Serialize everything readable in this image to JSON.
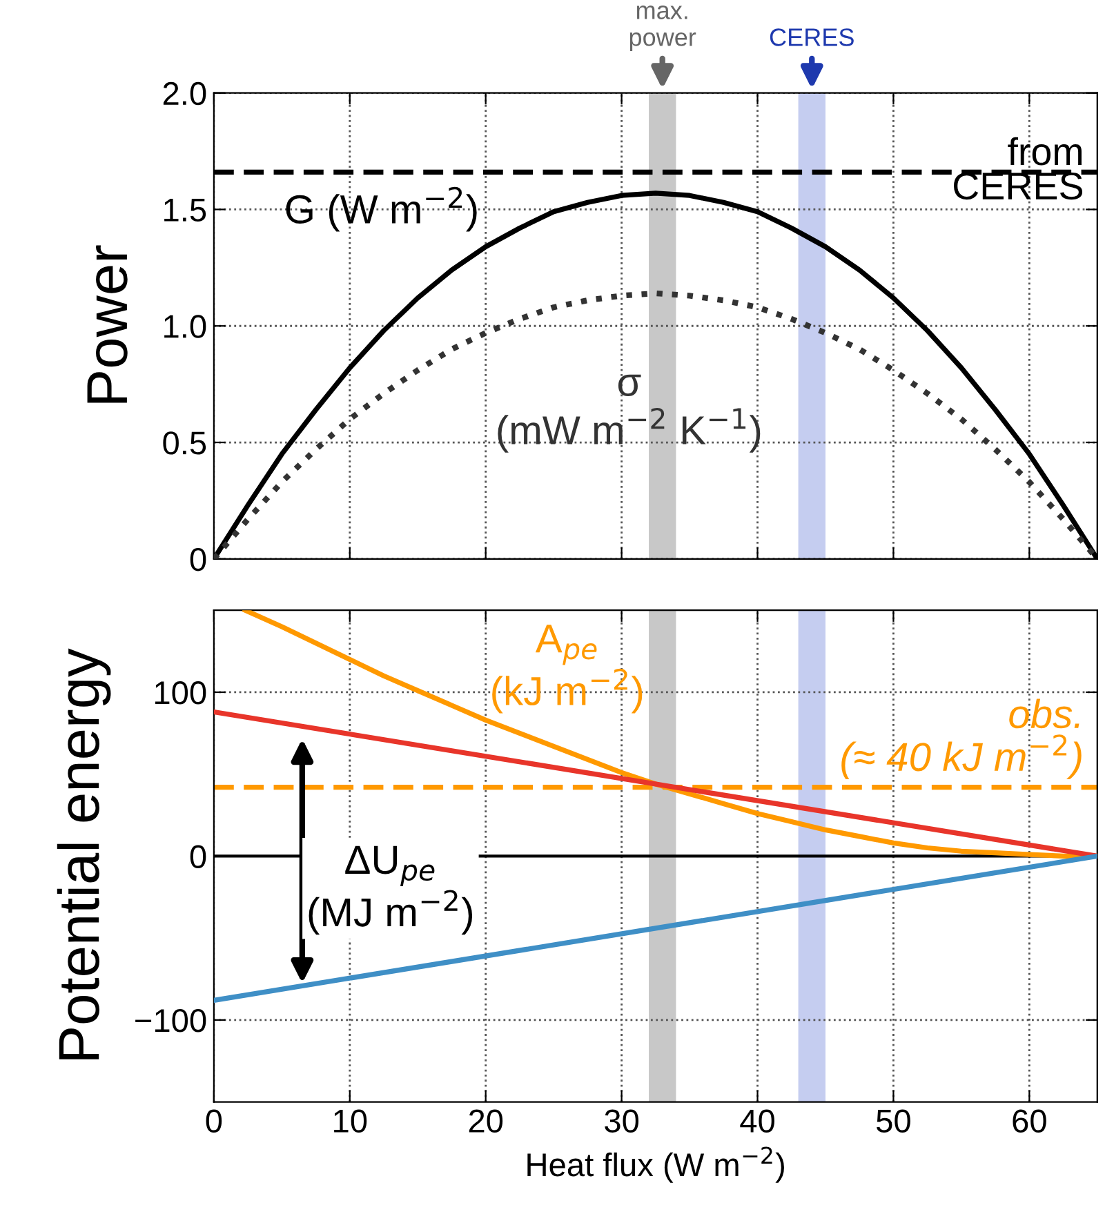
{
  "chart_data": [
    {
      "type": "line",
      "ylabel": "Power",
      "xlim": [
        0,
        65
      ],
      "xticks": [
        0,
        10,
        20,
        30,
        40,
        50,
        60
      ],
      "ylim": [
        0,
        2.0
      ],
      "yticks": [
        0,
        {
          "value": 0.5,
          "label": "0.5"
        },
        {
          "value": 1.0,
          "label": "1.0"
        },
        {
          "value": 1.5,
          "label": "1.5"
        },
        {
          "value": 2.0,
          "label": "2.0"
        }
      ],
      "tick_labels": "y",
      "grid": true,
      "series": [
        {
          "name": "G (W m$^{−2}$)",
          "color": "#000000",
          "line_style": "solid",
          "x": [
            0,
            2.5,
            5,
            7.5,
            10,
            12.5,
            15,
            17.5,
            20,
            22.5,
            25,
            27.5,
            30,
            32.5,
            35,
            37.5,
            40,
            42.5,
            45,
            47.5,
            50,
            52.5,
            55,
            57.5,
            60,
            62.5,
            65
          ],
          "values": [
            0,
            0.23,
            0.45,
            0.64,
            0.82,
            0.98,
            1.12,
            1.24,
            1.34,
            1.42,
            1.49,
            1.53,
            1.56,
            1.57,
            1.56,
            1.53,
            1.49,
            1.42,
            1.34,
            1.24,
            1.12,
            0.98,
            0.82,
            0.64,
            0.45,
            0.23,
            0
          ]
        },
        {
          "name": "σ\n(mW m$^{−2}$ K$^{−1}$)",
          "color": "#333333",
          "line_style": "dotted",
          "x": [
            0,
            2.5,
            5,
            7.5,
            10,
            12.5,
            15,
            17.5,
            20,
            22.5,
            25,
            27.5,
            30,
            32.5,
            35,
            37.5,
            40,
            42.5,
            45,
            47.5,
            50,
            52.5,
            55,
            57.5,
            60,
            62.5,
            65
          ],
          "values": [
            0,
            0.17,
            0.33,
            0.47,
            0.6,
            0.71,
            0.81,
            0.9,
            0.97,
            1.03,
            1.08,
            1.11,
            1.13,
            1.14,
            1.13,
            1.11,
            1.08,
            1.03,
            0.97,
            0.9,
            0.81,
            0.71,
            0.6,
            0.47,
            0.33,
            0.17,
            0
          ]
        }
      ],
      "ref_lines": [
        {
          "axis": "y",
          "value": 1.66,
          "label": "from\nCERES",
          "color": "#000000",
          "line_style": "dashed"
        }
      ],
      "bands": [
        {
          "axis": "x",
          "from": 32,
          "to": 34,
          "label": "max.\npower",
          "color": "#c8c8c8"
        },
        {
          "axis": "x",
          "from": 43,
          "to": 45,
          "label": "CERES",
          "color": "#c5cdf0"
        }
      ]
    },
    {
      "type": "line",
      "ylabel": "Potential energy",
      "xlabel": "Heat flux (W m$^{−2}$)",
      "xlim": [
        0,
        65
      ],
      "xticks": [
        0,
        10,
        20,
        30,
        40,
        50,
        60
      ],
      "ylim": [
        -150,
        150
      ],
      "yticks": [
        {
          "value": -100,
          "label": "−100"
        },
        0,
        100
      ],
      "grid": true,
      "series": [
        {
          "name": "A$_{pe}$\n(kJ m$^{−2}$)",
          "color": "#ff9900",
          "line_style": "solid",
          "x": [
            2.3,
            5,
            7.5,
            10,
            12.5,
            15,
            17.5,
            20,
            22.5,
            25,
            27.5,
            30,
            32.5,
            35,
            37.5,
            40,
            42.5,
            45,
            47.5,
            50,
            52.5,
            55,
            57.5,
            60,
            62.5,
            65
          ],
          "values": [
            150,
            140,
            130,
            120,
            110,
            101,
            92,
            83,
            75,
            67,
            59,
            51,
            44,
            38,
            32,
            26,
            21,
            16,
            12,
            8,
            5,
            3,
            2,
            1,
            0,
            0
          ]
        },
        {
          "color": "#e8352a",
          "line_style": "solid",
          "x": [
            0,
            65
          ],
          "values": [
            88,
            0
          ]
        },
        {
          "color": "#3f8fc6",
          "line_style": "solid",
          "x": [
            0,
            65
          ],
          "values": [
            -88,
            0
          ]
        }
      ],
      "ref_lines": [
        {
          "axis": "y",
          "value": 42,
          "label": "obs.\n(≈ 40 kJ m$^{−2}$)",
          "color": "#ff9900",
          "line_style": "dashed"
        },
        {
          "axis": "y",
          "value": 0,
          "color": "#000000",
          "line_style": "solid"
        }
      ],
      "bands": [
        {
          "axis": "x",
          "from": 32,
          "to": 34,
          "color": "#c8c8c8"
        },
        {
          "axis": "x",
          "from": 43,
          "to": 45,
          "color": "#c5cdf0"
        }
      ],
      "annotations": [
        "ΔU$_{pe}$\n(MJ m$^{−2}$)"
      ]
    }
  ]
}
